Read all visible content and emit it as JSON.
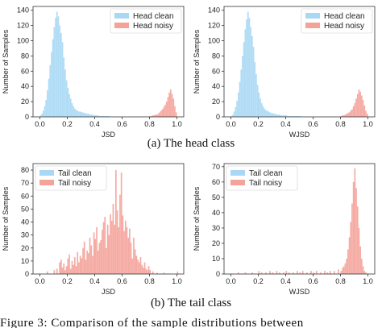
{
  "figure": {
    "caption_a": "(a) The head class",
    "caption_b": "(b) The tail class",
    "trailing_text": "Figure 3: Comparison of the sample distributions between"
  },
  "colors": {
    "clean": "#a8d8f5",
    "noisy": "#f4a39b",
    "axis": "#333333"
  },
  "chart_data": [
    {
      "id": "head-jsd",
      "type": "bar",
      "xlabel": "JSD",
      "ylabel": "Number of Samples",
      "xlim": [
        -0.05,
        1.05
      ],
      "ylim": [
        0,
        145
      ],
      "xticks": [
        "0.0",
        "0.2",
        "0.4",
        "0.6",
        "0.8",
        "1.0"
      ],
      "yticks": [
        "0",
        "20",
        "40",
        "60",
        "80",
        "100",
        "120",
        "140"
      ],
      "legend_position": "top-right",
      "bin_width": 0.01,
      "series": [
        {
          "name": "Head clean",
          "color": "clean",
          "x": [
            0.0,
            0.01,
            0.02,
            0.03,
            0.04,
            0.05,
            0.06,
            0.07,
            0.08,
            0.09,
            0.1,
            0.11,
            0.12,
            0.13,
            0.14,
            0.15,
            0.16,
            0.17,
            0.18,
            0.19,
            0.2,
            0.21,
            0.22,
            0.23,
            0.24,
            0.25,
            0.26,
            0.27,
            0.28,
            0.29,
            0.3,
            0.31,
            0.32,
            0.33,
            0.34,
            0.35,
            0.36,
            0.37,
            0.38,
            0.39,
            0.4,
            0.41,
            0.42,
            0.43,
            0.44,
            0.45,
            0.46,
            0.47,
            0.48,
            0.49,
            0.5
          ],
          "y": [
            2,
            4,
            8,
            14,
            22,
            35,
            50,
            68,
            85,
            102,
            118,
            130,
            138,
            132,
            120,
            110,
            98,
            78,
            62,
            48,
            38,
            30,
            24,
            18,
            14,
            11,
            9,
            8,
            7,
            7,
            6,
            6,
            5,
            5,
            4,
            4,
            3,
            3,
            3,
            2,
            2,
            2,
            2,
            1,
            1,
            1,
            1,
            1,
            1,
            1,
            1
          ]
        },
        {
          "name": "Head noisy",
          "color": "noisy",
          "x": [
            0.8,
            0.81,
            0.82,
            0.83,
            0.84,
            0.85,
            0.86,
            0.87,
            0.88,
            0.89,
            0.9,
            0.91,
            0.92,
            0.93,
            0.94,
            0.95,
            0.96,
            0.97,
            0.98,
            0.99
          ],
          "y": [
            1,
            1,
            2,
            2,
            3,
            3,
            4,
            6,
            8,
            10,
            13,
            16,
            20,
            26,
            32,
            36,
            30,
            24,
            14,
            6
          ]
        }
      ]
    },
    {
      "id": "head-wjsd",
      "type": "bar",
      "xlabel": "WJSD",
      "ylabel": "Number of Samples",
      "xlim": [
        -0.05,
        1.05
      ],
      "ylim": [
        0,
        145
      ],
      "xticks": [
        "0.0",
        "0.2",
        "0.4",
        "0.6",
        "0.8",
        "1.0"
      ],
      "yticks": [
        "0",
        "20",
        "40",
        "60",
        "80",
        "100",
        "120",
        "140"
      ],
      "legend_position": "top-right",
      "bin_width": 0.01,
      "series": [
        {
          "name": "Head clean",
          "color": "clean",
          "x": [
            0.0,
            0.01,
            0.02,
            0.03,
            0.04,
            0.05,
            0.06,
            0.07,
            0.08,
            0.09,
            0.1,
            0.11,
            0.12,
            0.13,
            0.14,
            0.15,
            0.16,
            0.17,
            0.18,
            0.19,
            0.2,
            0.21,
            0.22,
            0.23,
            0.24,
            0.25,
            0.26,
            0.27,
            0.28,
            0.29,
            0.3,
            0.31,
            0.32,
            0.33,
            0.34,
            0.35,
            0.36,
            0.37,
            0.38,
            0.39,
            0.4,
            0.41,
            0.42,
            0.43,
            0.44,
            0.45,
            0.46,
            0.47,
            0.48,
            0.49,
            0.5
          ],
          "y": [
            1,
            3,
            7,
            13,
            21,
            32,
            46,
            62,
            80,
            98,
            115,
            128,
            138,
            130,
            118,
            106,
            92,
            72,
            56,
            42,
            32,
            24,
            18,
            14,
            11,
            9,
            8,
            7,
            6,
            5,
            5,
            4,
            4,
            3,
            3,
            3,
            2,
            2,
            2,
            2,
            2,
            1,
            1,
            1,
            1,
            1,
            1,
            1,
            1,
            1,
            1
          ]
        },
        {
          "name": "Head noisy",
          "color": "noisy",
          "x": [
            0.8,
            0.81,
            0.82,
            0.83,
            0.84,
            0.85,
            0.86,
            0.87,
            0.88,
            0.89,
            0.9,
            0.91,
            0.92,
            0.93,
            0.94,
            0.95,
            0.96,
            0.97,
            0.98,
            0.99
          ],
          "y": [
            1,
            2,
            2,
            3,
            4,
            5,
            6,
            8,
            10,
            14,
            18,
            24,
            30,
            36,
            33,
            28,
            22,
            15,
            8,
            4
          ]
        }
      ]
    },
    {
      "id": "tail-jsd",
      "type": "bar",
      "xlabel": "JSD",
      "ylabel": "Number of Samples",
      "xlim": [
        -0.05,
        1.05
      ],
      "ylim": [
        0,
        85
      ],
      "xticks": [
        "0.0",
        "0.2",
        "0.4",
        "0.6",
        "0.8",
        "1.0"
      ],
      "yticks": [
        "0",
        "10",
        "20",
        "30",
        "40",
        "50",
        "60",
        "70",
        "80"
      ],
      "legend_position": "top-left",
      "bin_width": 0.01,
      "series": [
        {
          "name": "Tail clean",
          "color": "clean",
          "x": [],
          "y": []
        },
        {
          "name": "Tail noisy",
          "color": "noisy",
          "x": [
            0.05,
            0.1,
            0.12,
            0.14,
            0.15,
            0.16,
            0.17,
            0.18,
            0.19,
            0.2,
            0.21,
            0.22,
            0.23,
            0.24,
            0.25,
            0.26,
            0.27,
            0.28,
            0.29,
            0.3,
            0.31,
            0.32,
            0.33,
            0.34,
            0.35,
            0.36,
            0.37,
            0.38,
            0.39,
            0.4,
            0.41,
            0.42,
            0.43,
            0.44,
            0.45,
            0.46,
            0.47,
            0.48,
            0.49,
            0.5,
            0.51,
            0.52,
            0.53,
            0.54,
            0.55,
            0.56,
            0.57,
            0.58,
            0.59,
            0.6,
            0.61,
            0.62,
            0.63,
            0.64,
            0.65,
            0.66,
            0.67,
            0.68,
            0.69,
            0.7,
            0.71,
            0.72,
            0.73,
            0.74,
            0.75,
            0.76,
            0.77,
            0.78,
            0.79,
            0.8,
            0.82,
            0.85,
            0.9,
            1.0
          ],
          "y": [
            2,
            3,
            4,
            9,
            11,
            5,
            8,
            3,
            6,
            12,
            15,
            4,
            10,
            7,
            13,
            6,
            17,
            9,
            14,
            12,
            20,
            25,
            11,
            18,
            16,
            28,
            22,
            14,
            32,
            27,
            36,
            18,
            24,
            26,
            34,
            40,
            44,
            20,
            38,
            30,
            46,
            41,
            54,
            38,
            80,
            49,
            36,
            61,
            78,
            45,
            33,
            41,
            36,
            28,
            35,
            24,
            12,
            28,
            19,
            14,
            11,
            9,
            13,
            7,
            5,
            9,
            4,
            3,
            6,
            3,
            2,
            1,
            1,
            2
          ]
        }
      ]
    },
    {
      "id": "tail-wjsd",
      "type": "bar",
      "xlabel": "WJSD",
      "ylabel": "Number of Samples",
      "xlim": [
        -0.05,
        1.05
      ],
      "ylim": [
        0,
        72
      ],
      "xticks": [
        "0.0",
        "0.2",
        "0.4",
        "0.6",
        "0.8",
        "1.0"
      ],
      "yticks": [
        "0",
        "10",
        "20",
        "30",
        "40",
        "50",
        "60",
        "70"
      ],
      "legend_position": "top-left",
      "bin_width": 0.01,
      "series": [
        {
          "name": "Tail clean",
          "color": "clean",
          "x": [],
          "y": []
        },
        {
          "name": "Tail noisy",
          "color": "noisy",
          "x": [
            0.05,
            0.1,
            0.15,
            0.2,
            0.22,
            0.25,
            0.28,
            0.3,
            0.33,
            0.35,
            0.38,
            0.4,
            0.42,
            0.45,
            0.48,
            0.5,
            0.52,
            0.55,
            0.58,
            0.6,
            0.62,
            0.65,
            0.68,
            0.7,
            0.72,
            0.75,
            0.78,
            0.8,
            0.81,
            0.82,
            0.83,
            0.84,
            0.85,
            0.86,
            0.87,
            0.88,
            0.89,
            0.9,
            0.91,
            0.92,
            0.93,
            0.94,
            0.95,
            0.96,
            0.97,
            0.98
          ],
          "y": [
            1,
            1,
            1,
            2,
            1,
            1,
            2,
            1,
            2,
            1,
            1,
            2,
            1,
            1,
            2,
            1,
            2,
            1,
            2,
            1,
            2,
            1,
            2,
            1,
            2,
            2,
            3,
            2,
            4,
            5,
            7,
            10,
            16,
            24,
            34,
            46,
            60,
            69,
            56,
            44,
            30,
            18,
            10,
            5,
            2,
            1
          ]
        }
      ]
    }
  ]
}
